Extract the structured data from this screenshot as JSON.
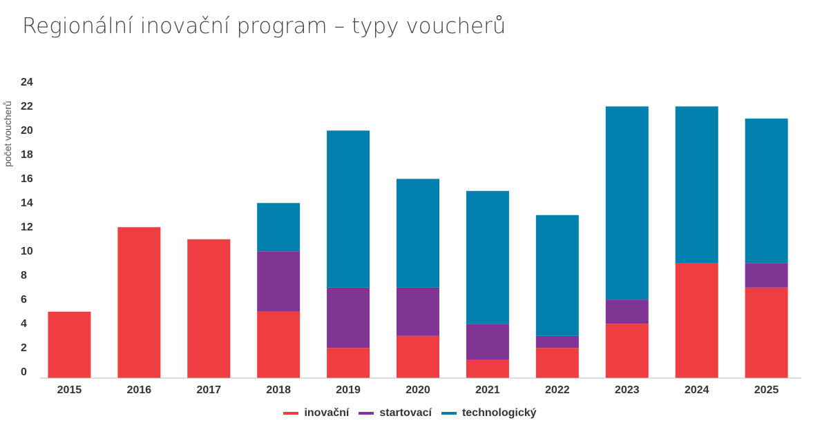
{
  "chart_data": {
    "type": "bar",
    "stacked": true,
    "title": "Regionální inovační program – typy voucherů",
    "xlabel": "",
    "ylabel": "počet voucherů",
    "ylim": [
      0,
      24
    ],
    "yticks": [
      0,
      2,
      4,
      6,
      8,
      10,
      12,
      14,
      16,
      18,
      20,
      22,
      24
    ],
    "categories": [
      "2015",
      "2016",
      "2017",
      "2018",
      "2019",
      "2020",
      "2021",
      "2022",
      "2023",
      "2024",
      "2025"
    ],
    "series": [
      {
        "name": "inovační",
        "color": "#ef3e42",
        "values": [
          5.5,
          12.5,
          11.5,
          5.5,
          2.5,
          3.5,
          1.5,
          2.5,
          4.5,
          9.5,
          7.5
        ]
      },
      {
        "name": "startovací",
        "color": "#803594",
        "values": [
          0,
          0,
          0,
          5,
          5,
          4,
          3,
          1,
          2,
          0,
          2
        ]
      },
      {
        "name": "technologický",
        "color": "#0081ad",
        "values": [
          0,
          0,
          0,
          4,
          13,
          9,
          11,
          10,
          16,
          13,
          12
        ]
      }
    ],
    "legend_position": "bottom-center",
    "grid": false
  }
}
